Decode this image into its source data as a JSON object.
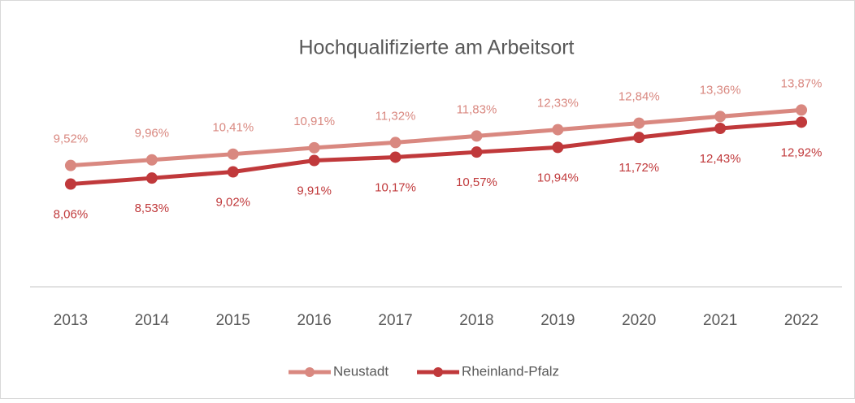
{
  "chart_data": {
    "type": "line",
    "title": "Hochqualifizierte am Arbeitsort",
    "categories": [
      "2013",
      "2014",
      "2015",
      "2016",
      "2017",
      "2018",
      "2019",
      "2020",
      "2021",
      "2022"
    ],
    "series": [
      {
        "name": "Neustadt",
        "color": "#d98880",
        "values": [
          9.52,
          9.96,
          10.41,
          10.91,
          11.32,
          11.83,
          12.33,
          12.84,
          13.36,
          13.87
        ],
        "value_labels": [
          "9,52%",
          "9,96%",
          "10,41%",
          "10,91%",
          "11,32%",
          "11,83%",
          "12,33%",
          "12,84%",
          "13,36%",
          "13,87%"
        ]
      },
      {
        "name": "Rheinland-Pfalz",
        "color": "#c0393b",
        "values": [
          8.06,
          8.53,
          9.02,
          9.91,
          10.17,
          10.57,
          10.94,
          11.72,
          12.43,
          12.92
        ],
        "value_labels": [
          "8,06%",
          "8,53%",
          "9,02%",
          "9,91%",
          "10,17%",
          "10,57%",
          "10,94%",
          "11,72%",
          "12,43%",
          "12,92%"
        ]
      }
    ],
    "ylim": [
      0,
      16
    ],
    "legend": "bottom"
  }
}
